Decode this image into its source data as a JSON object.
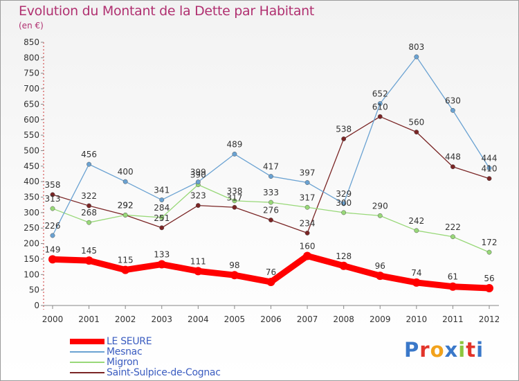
{
  "title": "Evolution du Montant de la Dette par Habitant",
  "subtitle": "(en €)",
  "logo": "Proxiti",
  "logo_colors": [
    "#3a78c9",
    "#e2342a",
    "#f2a21b",
    "#3a78c9",
    "#8cc63f",
    "#e2342a",
    "#3a78c9"
  ],
  "chart_data": {
    "type": "line",
    "title": "Evolution du Montant de la Dette par Habitant",
    "subtitle": "(en €)",
    "xlabel": "",
    "ylabel": "",
    "x": [
      "2000",
      "2001",
      "2002",
      "2003",
      "2004",
      "2005",
      "2006",
      "2007",
      "2008",
      "2009",
      "2010",
      "2011",
      "2012"
    ],
    "ylim": [
      0,
      850
    ],
    "yticks": [
      0,
      50,
      100,
      150,
      200,
      250,
      300,
      350,
      400,
      450,
      500,
      550,
      600,
      650,
      700,
      750,
      800,
      850
    ],
    "grid": false,
    "legend_position": "bottom-left",
    "series": [
      {
        "name": "LE SEURE",
        "color": "#ff0000",
        "values": [
          149,
          145,
          115,
          133,
          111,
          98,
          76,
          160,
          128,
          96,
          74,
          61,
          56
        ]
      },
      {
        "name": "Mesnac",
        "color": "#6aa2d2",
        "values": [
          226,
          456,
          400,
          341,
          399,
          489,
          417,
          397,
          329,
          652,
          803,
          630,
          444
        ]
      },
      {
        "name": "Migron",
        "color": "#98d878",
        "values": [
          313,
          268,
          292,
          284,
          390,
          338,
          333,
          317,
          300,
          290,
          242,
          222,
          172
        ]
      },
      {
        "name": "Saint-Sulpice-de-Cognac",
        "color": "#7a2525",
        "values": [
          358,
          322,
          292,
          251,
          323,
          317,
          276,
          234,
          538,
          610,
          560,
          448,
          410
        ]
      }
    ]
  }
}
